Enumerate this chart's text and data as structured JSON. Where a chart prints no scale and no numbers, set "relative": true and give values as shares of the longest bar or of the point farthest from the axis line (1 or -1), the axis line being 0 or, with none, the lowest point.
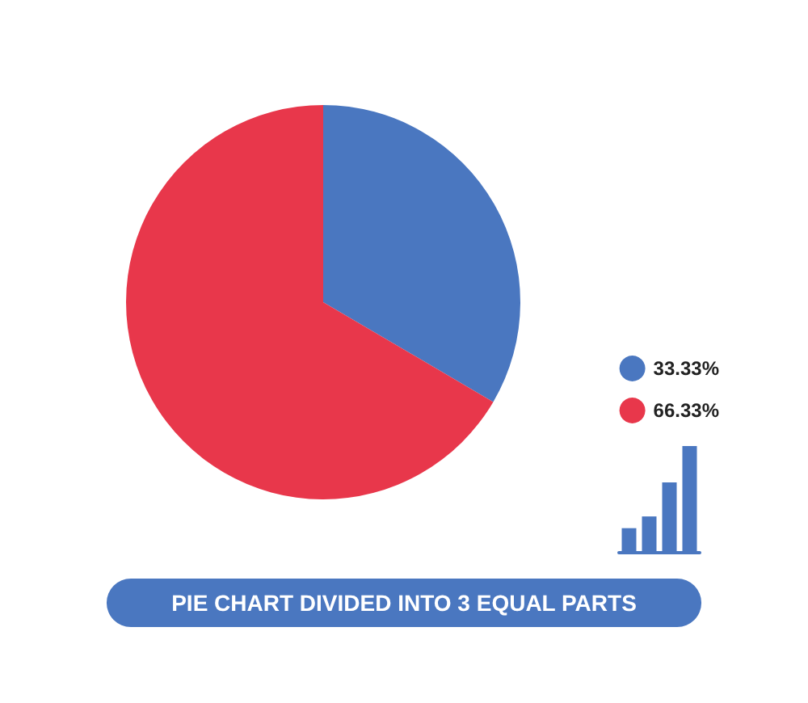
{
  "chart_data": [
    {
      "type": "pie",
      "title": "PIE CHART DIVIDED INTO 3 EQUAL PARTS",
      "categories": [
        "33.33%",
        "66.33%"
      ],
      "values": [
        33.33,
        66.33
      ],
      "colors": [
        "#4a77c0",
        "#e8374b"
      ],
      "legend": "right"
    },
    {
      "type": "bar",
      "relative": true,
      "categories": [
        null,
        null,
        null,
        null
      ],
      "values": [
        0.23,
        0.34,
        0.66,
        1
      ],
      "color": "#4a77c0"
    }
  ]
}
